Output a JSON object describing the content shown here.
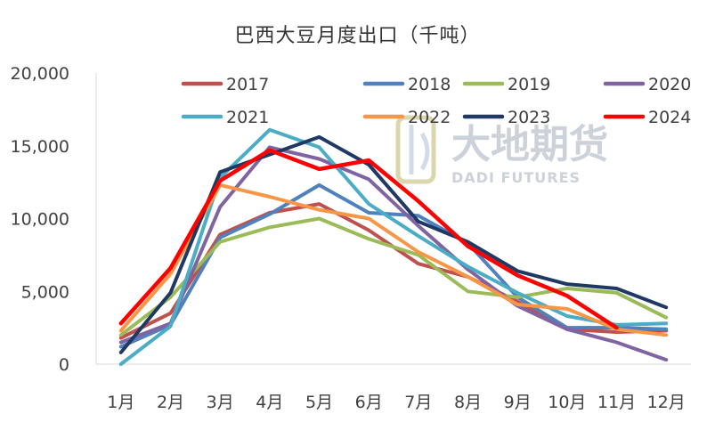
{
  "chart_data": {
    "type": "line",
    "title": "巴西大豆月度出口（千吨）",
    "categories": [
      "1月",
      "2月",
      "3月",
      "4月",
      "5月",
      "6月",
      "7月",
      "8月",
      "9月",
      "10月",
      "11月",
      "12月"
    ],
    "ylim": [
      0,
      20000
    ],
    "yticks": [
      0,
      5000,
      10000,
      15000,
      20000
    ],
    "ytick_labels": [
      "0",
      "5,000",
      "10,000",
      "15,000",
      "20,000"
    ],
    "grid": false,
    "legend_position": "top",
    "series": [
      {
        "name": "2017",
        "color": "#c0504d",
        "values": [
          1800,
          3500,
          8900,
          10400,
          11000,
          9200,
          6900,
          6000,
          4300,
          2400,
          2200,
          2300
        ]
      },
      {
        "name": "2018",
        "color": "#4f81bd",
        "values": [
          1200,
          2700,
          8700,
          10300,
          12300,
          10400,
          10200,
          8300,
          4600,
          2500,
          2500,
          2400
        ]
      },
      {
        "name": "2019",
        "color": "#9bbb59",
        "values": [
          2000,
          4600,
          8400,
          9400,
          10000,
          8600,
          7500,
          5000,
          4600,
          5200,
          4900,
          3200
        ]
      },
      {
        "name": "2020",
        "color": "#8064a2",
        "values": [
          1500,
          2800,
          10800,
          14900,
          14100,
          12700,
          9500,
          6500,
          4000,
          2400,
          1500,
          300
        ]
      },
      {
        "name": "2021",
        "color": "#4bacc6",
        "values": [
          0,
          2600,
          12800,
          16100,
          14900,
          11000,
          8800,
          6700,
          4900,
          3300,
          2700,
          2800
        ]
      },
      {
        "name": "2022",
        "color": "#f79646",
        "values": [
          2300,
          6200,
          12300,
          11500,
          10600,
          10000,
          7700,
          6000,
          4100,
          3800,
          2400,
          2000
        ]
      },
      {
        "name": "2023",
        "color": "#1f3864",
        "values": [
          800,
          4900,
          13200,
          14400,
          15600,
          13700,
          9800,
          8400,
          6400,
          5500,
          5200,
          3900
        ]
      },
      {
        "name": "2024",
        "color": "#ff0000",
        "values": [
          2800,
          6600,
          12600,
          14700,
          13400,
          14000,
          11200,
          8100,
          6100,
          4700,
          2500,
          null
        ]
      }
    ]
  },
  "watermark": {
    "brand_cn": "大地期货",
    "brand_en": "DADI FUTURES"
  }
}
